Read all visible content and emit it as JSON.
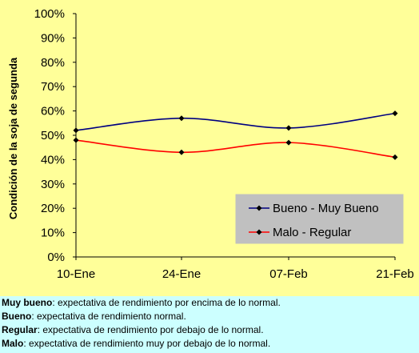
{
  "chart_data": {
    "type": "line",
    "ylabel": "Condición de la soja de segunda",
    "categories": [
      "10-Ene",
      "24-Ene",
      "07-Feb",
      "21-Feb"
    ],
    "ylim": [
      0,
      100
    ],
    "yticks": [
      "0%",
      "10%",
      "20%",
      "30%",
      "40%",
      "50%",
      "60%",
      "70%",
      "80%",
      "90%",
      "100%"
    ],
    "series": [
      {
        "name": "Bueno - Muy Bueno",
        "color": "#000080",
        "values": [
          52,
          57,
          53,
          59
        ]
      },
      {
        "name": "Malo - Regular",
        "color": "#ff0000",
        "values": [
          48,
          43,
          47,
          41
        ]
      }
    ],
    "legend_position": "bottom-right",
    "legend_bg": "#c0c0c0",
    "grid": false
  },
  "notes": [
    {
      "term": "Muy bueno",
      "text": ": expectativa de rendimiento por encima de lo normal."
    },
    {
      "term": "Bueno",
      "text": ": expectativa de rendimiento normal."
    },
    {
      "term": "Regular",
      "text": ": expectativa de rendimiento por debajo de lo normal."
    },
    {
      "term": "Malo",
      "text": ": expectativa de rendimiento muy por debajo de lo normal."
    }
  ]
}
